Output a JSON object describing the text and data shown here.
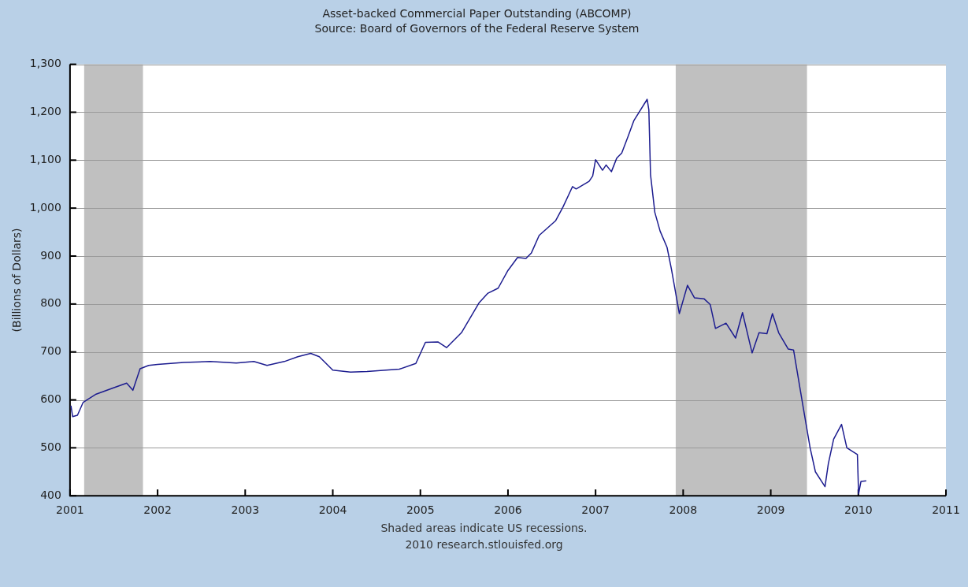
{
  "chart_data": {
    "type": "line",
    "title": "Asset-backed Commercial Paper Outstanding (ABCOMP)",
    "subtitle": "Source: Board of Governors of the Federal Reserve System",
    "ylabel": "(Billions of Dollars)",
    "annotations": [
      "Shaded areas indicate US recessions.",
      "2010 research.stlouisfed.org"
    ],
    "xlim": [
      "2001",
      "2011"
    ],
    "xticks": [
      "2001",
      "2002",
      "2003",
      "2004",
      "2005",
      "2006",
      "2007",
      "2008",
      "2009",
      "2010",
      "2011"
    ],
    "ylim": [
      400,
      1300
    ],
    "yticks": [
      400,
      500,
      600,
      700,
      800,
      900,
      {
        "value": 1000,
        "label": "1,000"
      },
      {
        "value": 1100,
        "label": "1,100"
      },
      {
        "value": 1200,
        "label": "1,200"
      },
      {
        "value": 1300,
        "label": "1,300"
      }
    ],
    "grid": "y",
    "legend": false,
    "marker": "none",
    "line_style": "solid",
    "bands": [
      {
        "axis": "x",
        "from": "2001-03-01",
        "to": "2001-11-01",
        "color": "#c0c0c0"
      },
      {
        "axis": "x",
        "from": "2007-12-01",
        "to": "2009-06-01",
        "color": "#c0c0c0"
      }
    ],
    "x": [
      "2001-01-05",
      "2001-01-12",
      "2001-02-01",
      "2001-02-25",
      "2001-04-20",
      "2001-07-01",
      "2001-08-25",
      "2001-09-20",
      "2001-10-20",
      "2001-11-25",
      "2002-01-01",
      "2002-04-20",
      "2002-08-08",
      "2002-11-25",
      "2003-02-06",
      "2003-04-02",
      "2003-06-13",
      "2003-08-08",
      "2003-10-01",
      "2003-11-06",
      "2004-01-01",
      "2004-03-15",
      "2004-05-23",
      "2004-10-05",
      "2004-12-13",
      "2005-01-22",
      "2005-03-15",
      "2005-04-20",
      "2005-06-21",
      "2005-09-02",
      "2005-10-08",
      "2005-11-21",
      "2006-01-01",
      "2006-02-10",
      "2006-03-17",
      "2006-04-08",
      "2006-05-11",
      "2006-07-19",
      "2006-08-18",
      "2006-09-27",
      "2006-10-12",
      "2006-12-05",
      "2006-12-20",
      "2007-01-01",
      "2007-01-30",
      "2007-02-14",
      "2007-03-08",
      "2007-03-30",
      "2007-04-20",
      "2007-05-16",
      "2007-06-10",
      "2007-08-04",
      "2007-08-11",
      "2007-08-18",
      "2007-09-05",
      "2007-09-27",
      "2007-10-26",
      "2007-11-13",
      "2007-12-05",
      "2007-12-16",
      "2008-01-19",
      "2008-02-17",
      "2008-03-28",
      "2008-04-23",
      "2008-05-15",
      "2008-06-28",
      "2008-08-07",
      "2008-09-05",
      "2008-10-15",
      "2008-11-13",
      "2008-12-16",
      "2009-01-08",
      "2009-02-03",
      "2009-03-15",
      "2009-04-06",
      "2009-05-16",
      "2009-06-14",
      "2009-07-06",
      "2009-08-15",
      "2009-08-29",
      "2009-09-20",
      "2009-10-23",
      "2009-11-14",
      "2009-12-28",
      "2010-01-02",
      "2010-01-12",
      "2010-02-03"
    ],
    "series": [
      {
        "color": "#1c1c8f",
        "values": [
          588,
          565,
          568,
          595,
          612,
          625,
          635,
          620,
          665,
          672,
          674,
          678,
          680,
          677,
          680,
          672,
          680,
          690,
          697,
          690,
          662,
          658,
          659,
          664,
          676,
          720,
          721,
          709,
          740,
          802,
          822,
          833,
          870,
          897,
          895,
          906,
          943,
          974,
          1002,
          1045,
          1040,
          1056,
          1067,
          1101,
          1079,
          1090,
          1076,
          1104,
          1115,
          1149,
          1183,
          1227,
          1205,
          1070,
          991,
          952,
          918,
          873,
          811,
          780,
          839,
          813,
          811,
          799,
          749,
          760,
          729,
          782,
          698,
          740,
          738,
          780,
          740,
          706,
          704,
          585,
          500,
          450,
          419,
          467,
          518,
          549,
          500,
          486,
          404,
          430,
          431
        ]
      }
    ]
  }
}
